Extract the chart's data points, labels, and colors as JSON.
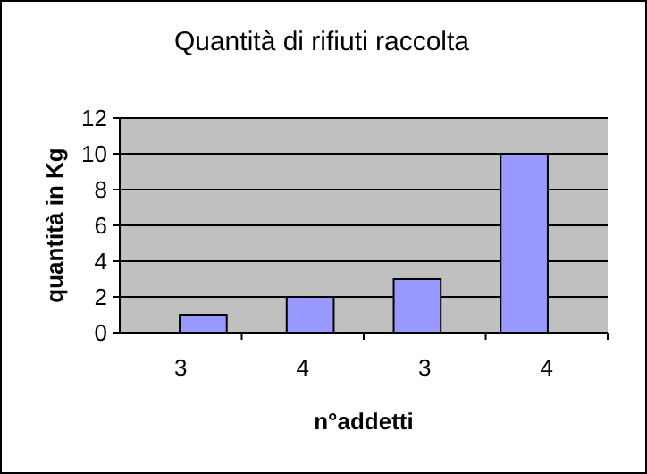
{
  "chart_data": {
    "type": "bar",
    "title": "Quantità di rifiuti raccolta",
    "xlabel": "n°addetti",
    "ylabel": "quantità in Kg",
    "categories": [
      "3",
      "4",
      "3",
      "4"
    ],
    "values": [
      1,
      2,
      3,
      10
    ],
    "color": "#9999ff",
    "ylim": [
      0,
      12
    ],
    "yticks": [
      0,
      2,
      4,
      6,
      8,
      10,
      12
    ],
    "grid": "y"
  }
}
